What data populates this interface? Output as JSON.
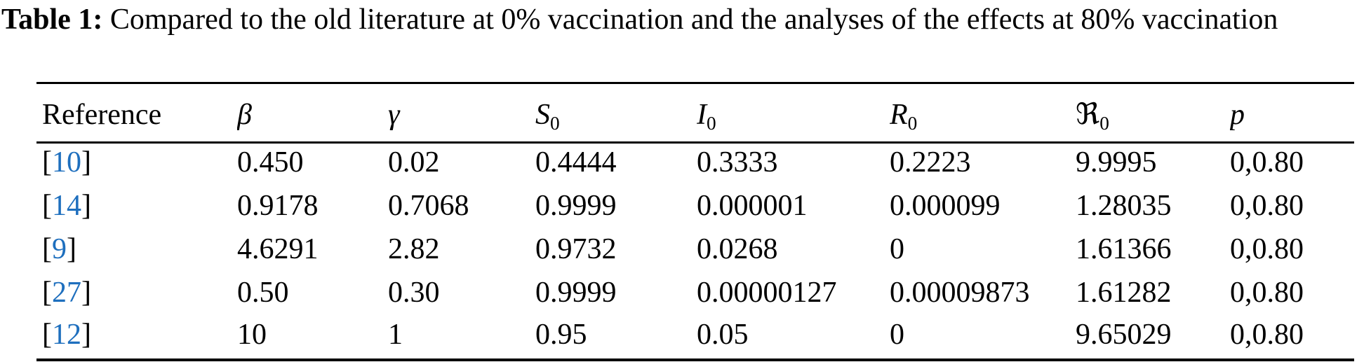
{
  "caption": {
    "label": "Table 1:",
    "text": " Compared to the old literature at 0% vaccination and the analyses of the effects at 80% vaccination"
  },
  "table": {
    "columns": [
      {
        "key": "reference",
        "label": "Reference",
        "italic": false,
        "sub": ""
      },
      {
        "key": "beta",
        "label": "β",
        "italic": true,
        "sub": ""
      },
      {
        "key": "gamma",
        "label": "γ",
        "italic": true,
        "sub": ""
      },
      {
        "key": "S0",
        "label": "S",
        "italic": true,
        "sub": "0"
      },
      {
        "key": "I0",
        "label": "I",
        "italic": true,
        "sub": "0"
      },
      {
        "key": "R0",
        "label": "R",
        "italic": true,
        "sub": "0"
      },
      {
        "key": "Rn0",
        "label": "ℜ",
        "italic": false,
        "sub": "0"
      },
      {
        "key": "p",
        "label": "p",
        "italic": true,
        "sub": ""
      }
    ],
    "bold_column": "Rn0",
    "rows": [
      {
        "reference": "10",
        "beta": "0.450",
        "gamma": "0.02",
        "S0": "0.4444",
        "I0": "0.3333",
        "R0": "0.2223",
        "Rn0": "9.9995",
        "p": "0,0.80"
      },
      {
        "reference": "14",
        "beta": "0.9178",
        "gamma": "0.7068",
        "S0": "0.9999",
        "I0": "0.000001",
        "R0": "0.000099",
        "Rn0": "1.28035",
        "p": "0,0.80"
      },
      {
        "reference": "9",
        "beta": "4.6291",
        "gamma": "2.82",
        "S0": "0.9732",
        "I0": "0.0268",
        "R0": "0",
        "Rn0": "1.61366",
        "p": "0,0.80"
      },
      {
        "reference": "27",
        "beta": "0.50",
        "gamma": "0.30",
        "S0": "0.9999",
        "I0": "0.00000127",
        "R0": "0.00009873",
        "Rn0": "1.61282",
        "p": "0,0.80"
      },
      {
        "reference": "12",
        "beta": "10",
        "gamma": "1",
        "S0": "0.95",
        "I0": "0.05",
        "R0": "0",
        "Rn0": "9.65029",
        "p": "0,0.80"
      }
    ]
  },
  "colors": {
    "citation_blue": "#1e6fbe",
    "text": "#000000",
    "background": "#ffffff"
  }
}
